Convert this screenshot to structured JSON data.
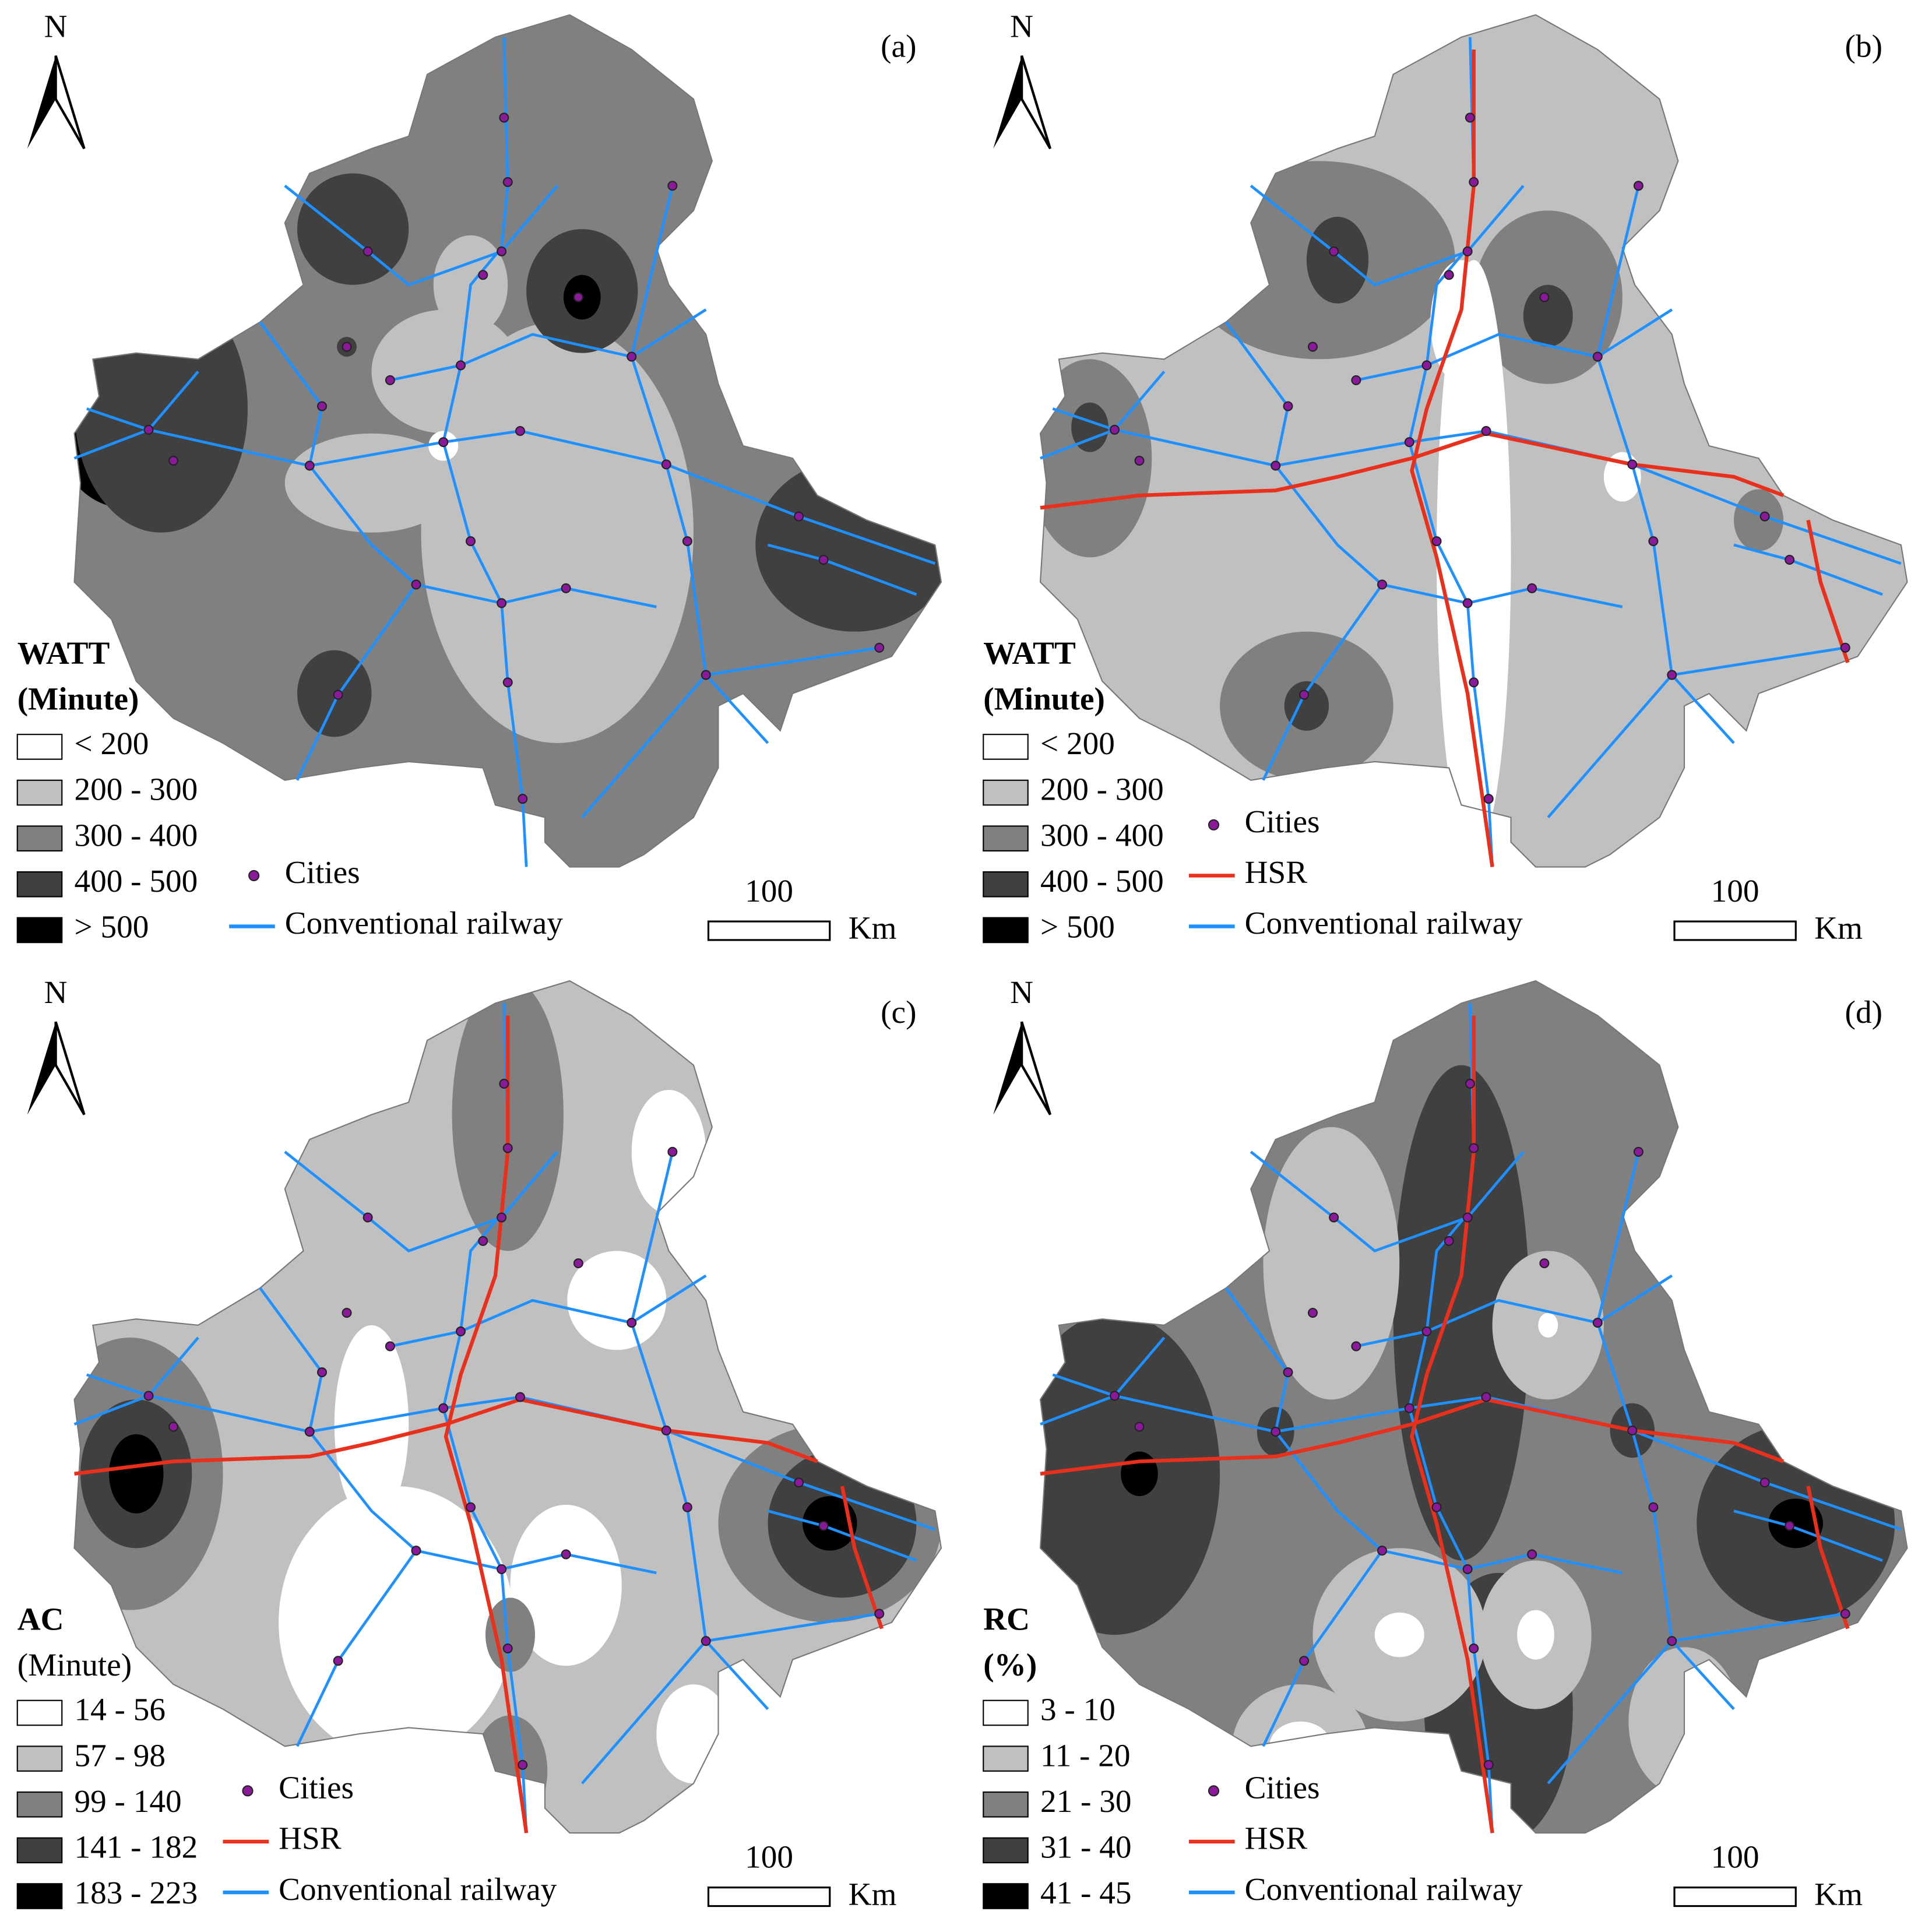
{
  "panels": [
    {
      "label": "(a)",
      "north": "N",
      "legend": {
        "title": [
          "WATT",
          "(Minute)"
        ],
        "title_bold": [
          true,
          true
        ],
        "classes": [
          "< 200",
          "200 - 300",
          "300 - 400",
          "400 - 500",
          "> 500"
        ],
        "symbols": [
          "Cities",
          "Conventional railway"
        ]
      },
      "scale": {
        "value": "100",
        "unit": "Km"
      }
    },
    {
      "label": "(b)",
      "north": "N",
      "legend": {
        "title": [
          "WATT",
          "(Minute)"
        ],
        "title_bold": [
          true,
          true
        ],
        "classes": [
          "< 200",
          "200 - 300",
          "300 - 400",
          "400 - 500",
          "> 500"
        ],
        "symbols": [
          "Cities",
          "HSR",
          "Conventional railway"
        ]
      },
      "scale": {
        "value": "100",
        "unit": "Km"
      }
    },
    {
      "label": "(c)",
      "north": "N",
      "legend": {
        "title": [
          "AC",
          "(Minute)"
        ],
        "title_bold": [
          true,
          false
        ],
        "classes": [
          "14 - 56",
          "57 - 98",
          "99 - 140",
          "141 - 182",
          "183 - 223"
        ],
        "symbols": [
          "Cities",
          "HSR",
          "Conventional railway"
        ]
      },
      "scale": {
        "value": "100",
        "unit": "Km"
      }
    },
    {
      "label": "(d)",
      "north": "N",
      "legend": {
        "title": [
          "RC",
          "(%)"
        ],
        "title_bold": [
          true,
          true
        ],
        "classes": [
          "3 - 10",
          "11 - 20",
          "21 - 30",
          "31 - 40",
          "41 - 45"
        ],
        "symbols": [
          "Cities",
          "HSR",
          "Conventional railway"
        ]
      },
      "scale": {
        "value": "100",
        "unit": "Km"
      }
    }
  ]
}
